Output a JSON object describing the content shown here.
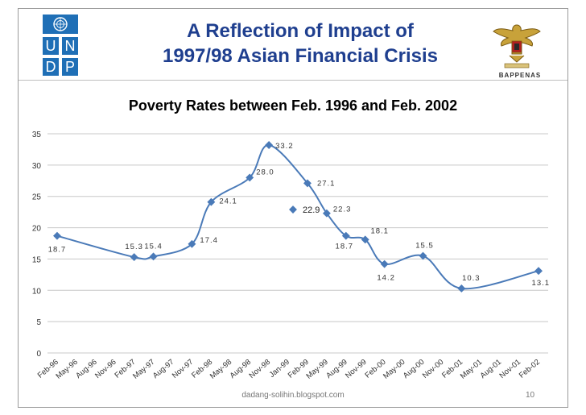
{
  "header": {
    "title_line1": "A Reflection of Impact of",
    "title_line2": "1997/98 Asian Financial Crisis",
    "undp_letters": [
      "U",
      "N",
      "D",
      "P"
    ],
    "emblem_label": "BAPPENAS",
    "left_logo_icon": "un-emblem-icon",
    "right_logo_icon": "garuda-emblem-icon"
  },
  "footer": {
    "url": "dadang-solihin.blogspot.com",
    "page": "10"
  },
  "colors": {
    "series": "#4a7ab8",
    "title": "#1f3f8f",
    "undp_blue": "#1f6fb6"
  },
  "chart_data": {
    "type": "line",
    "title": "Poverty Rates between Feb. 1996 and Feb. 2002",
    "ylim": [
      0,
      35
    ],
    "yticks": [
      0,
      5,
      10,
      15,
      20,
      25,
      30,
      35
    ],
    "grid": true,
    "categories": [
      "Feb-96",
      "May-96",
      "Aug-96",
      "Nov-96",
      "Feb-97",
      "May-97",
      "Aug-97",
      "Nov-97",
      "Feb-98",
      "May-98",
      "Aug-98",
      "Nov-98",
      "Jan-99",
      "Feb-99",
      "May-99",
      "Aug-99",
      "Nov-99",
      "Feb-00",
      "May-00",
      "Aug-00",
      "Nov-00",
      "Feb-01",
      "May-01",
      "Aug-01",
      "Nov-01",
      "Feb-02"
    ],
    "series": [
      {
        "values": [
          18.7,
          null,
          null,
          null,
          15.3,
          15.4,
          null,
          17.4,
          24.1,
          null,
          28.0,
          33.2,
          null,
          27.1,
          22.3,
          18.7,
          18.1,
          14.2,
          null,
          15.5,
          null,
          10.3,
          null,
          null,
          null,
          13.1
        ],
        "labels": [
          "18.7",
          "",
          "",
          "",
          "15.3",
          "15.4",
          "",
          "17.4",
          "24.1",
          "",
          "28.0",
          "33.2",
          "",
          "27.1",
          "22.3",
          "18.7",
          "18.1",
          "14.2",
          "",
          "15.5",
          "",
          "10.3",
          "",
          "",
          "",
          "13.1"
        ]
      }
    ],
    "legend": {
      "marker_label": "22.9",
      "value": 22.9
    }
  }
}
